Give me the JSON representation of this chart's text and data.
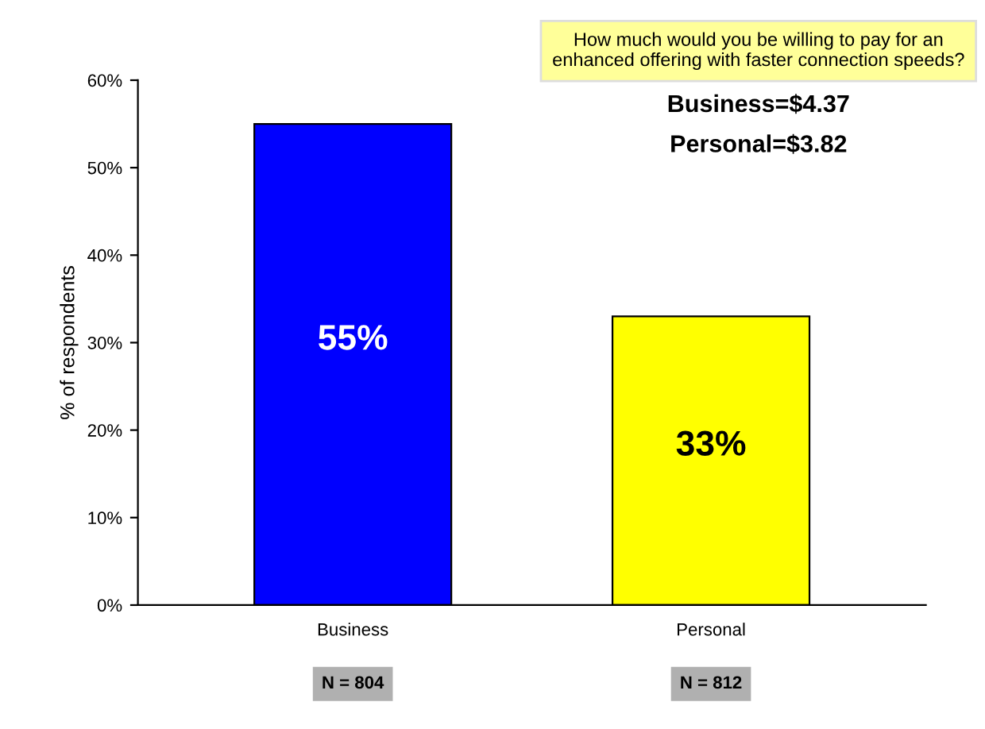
{
  "chart_data": {
    "type": "bar",
    "ylabel": "% of respondents",
    "categories": [
      "Business",
      "Personal"
    ],
    "values": [
      55,
      33
    ],
    "colors": [
      "#0000ff",
      "#ffff00"
    ],
    "value_labels": [
      "55%",
      "33%"
    ],
    "ylim": [
      0,
      60
    ],
    "yticks": [
      {
        "value": 0,
        "label": "0%"
      },
      {
        "value": 10,
        "label": "10%"
      },
      {
        "value": 20,
        "label": "20%"
      },
      {
        "value": 30,
        "label": "30%"
      },
      {
        "value": 40,
        "label": "40%"
      },
      {
        "value": 50,
        "label": "50%"
      },
      {
        "value": 60,
        "label": "60%"
      }
    ],
    "grid": false,
    "annotations": [
      "How much would you be willing to pay for an\nenhanced offering with faster connection speeds?",
      "Business=$4.37",
      "Personal=$3.82",
      "N = 804",
      "N = 812"
    ]
  }
}
